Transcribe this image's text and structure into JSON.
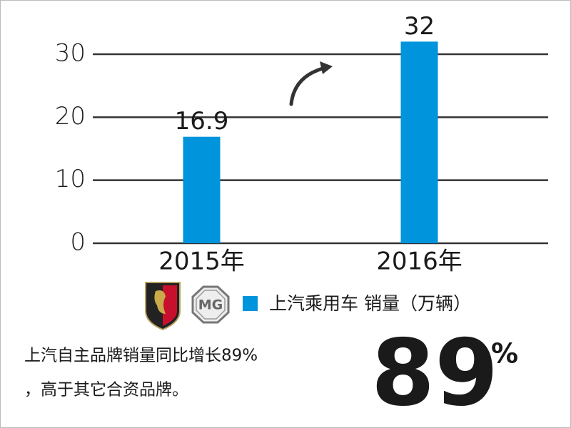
{
  "chart_data": {
    "type": "bar",
    "categories": [
      "2015年",
      "2016年"
    ],
    "values": [
      16.9,
      32
    ],
    "color": "#0094dc",
    "series_name": "上汽乘用车 销量（万辆）",
    "ylim": [
      0,
      33
    ],
    "yticks": [
      0,
      10,
      20,
      30
    ],
    "grid": true,
    "logo_text": "MG",
    "annotations": [
      "上汽自主品牌销量同比增长89%",
      "，高于其它合资品牌。"
    ],
    "big_number": "89",
    "big_number_unit": "%"
  }
}
